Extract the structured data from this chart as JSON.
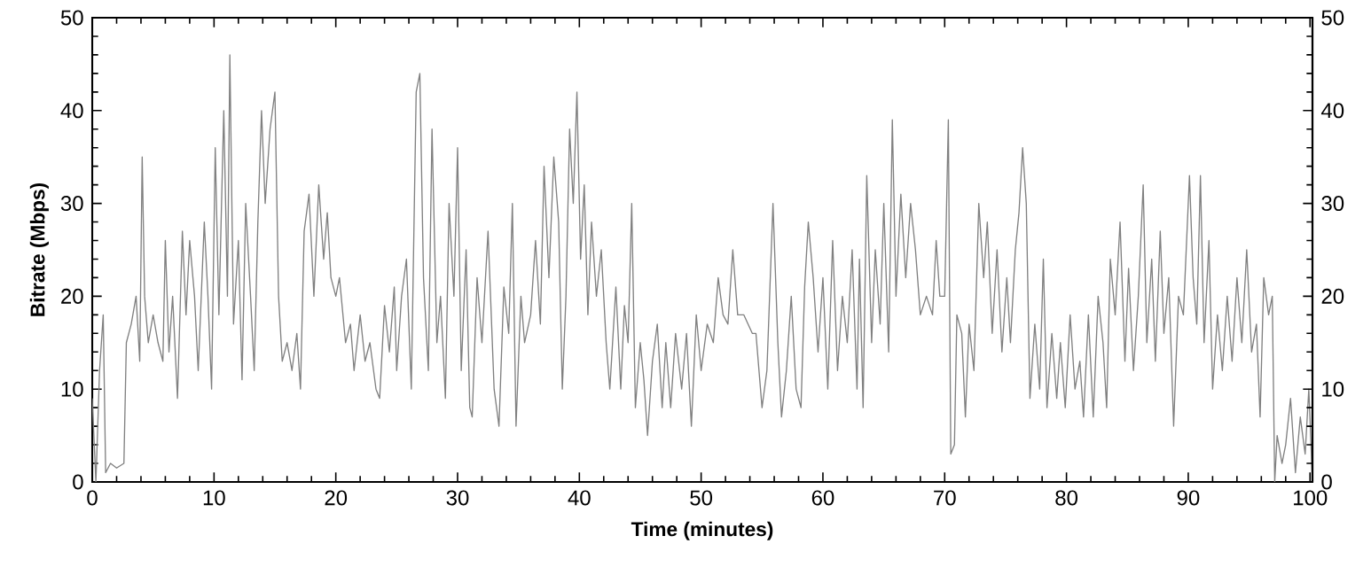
{
  "chart_data": {
    "type": "line",
    "xlabel": "Time (minutes)",
    "ylabel": "Bitrate (Mbps)",
    "xlim": [
      0,
      100.2
    ],
    "ylim": [
      0,
      50
    ],
    "xticks": [
      0,
      10,
      20,
      30,
      40,
      50,
      60,
      70,
      80,
      90,
      100
    ],
    "yticks": [
      0,
      10,
      20,
      30,
      40,
      50
    ],
    "y2lim": [
      0,
      50
    ],
    "y2ticks": [
      0,
      10,
      20,
      30,
      40,
      50
    ],
    "grid": false,
    "marker": "none",
    "line_style": "solid",
    "series": [
      {
        "color": "#808080",
        "x": [
          0,
          0.3,
          0.6,
          0.9,
          1.1,
          1.5,
          2,
          2.6,
          2.8,
          3.2,
          3.6,
          3.9,
          4.1,
          4.3,
          4.6,
          5,
          5.4,
          5.8,
          6,
          6.3,
          6.6,
          7,
          7.2,
          7.4,
          7.7,
          8,
          8.4,
          8.7,
          9.2,
          9.5,
          9.8,
          10.1,
          10.4,
          10.8,
          11.1,
          11.3,
          11.6,
          12,
          12.3,
          12.6,
          13,
          13.3,
          13.6,
          13.9,
          14.2,
          14.6,
          15,
          15.3,
          15.6,
          16,
          16.4,
          16.8,
          17.1,
          17.4,
          17.8,
          18.2,
          18.6,
          19,
          19.3,
          19.6,
          20,
          20.3,
          20.8,
          21.2,
          21.5,
          22,
          22.4,
          22.8,
          23.3,
          23.6,
          24,
          24.4,
          24.8,
          25,
          25.4,
          25.8,
          26.2,
          26.6,
          26.9,
          27.2,
          27.6,
          27.9,
          28.3,
          28.6,
          29,
          29.3,
          29.7,
          30,
          30.3,
          30.7,
          31,
          31.2,
          31.6,
          32,
          32.5,
          33,
          33.4,
          33.8,
          34.2,
          34.5,
          34.8,
          35.2,
          35.5,
          36,
          36.4,
          36.8,
          37.1,
          37.5,
          37.9,
          38.3,
          38.6,
          38.9,
          39.2,
          39.5,
          39.8,
          40.1,
          40.4,
          40.7,
          41,
          41.4,
          41.8,
          42.2,
          42.5,
          43,
          43.4,
          43.7,
          44,
          44.3,
          44.6,
          45,
          45.3,
          45.6,
          46,
          46.4,
          46.8,
          47.1,
          47.5,
          47.9,
          48.4,
          48.8,
          49.2,
          49.6,
          50,
          50.5,
          51,
          51.4,
          51.8,
          52.2,
          52.6,
          53,
          53.5,
          54.2,
          54.5,
          55,
          55.4,
          55.9,
          56.3,
          56.6,
          57,
          57.4,
          57.8,
          58.2,
          58.5,
          58.8,
          59.2,
          59.6,
          60,
          60.4,
          60.8,
          61.2,
          61.6,
          62,
          62.4,
          62.8,
          63,
          63.3,
          63.6,
          64,
          64.3,
          64.7,
          65,
          65.4,
          65.7,
          66,
          66.4,
          66.8,
          67.2,
          67.6,
          68,
          68.5,
          69,
          69.3,
          69.6,
          70,
          70.3,
          70.5,
          70.8,
          71,
          71.4,
          71.7,
          72,
          72.4,
          72.8,
          73.2,
          73.5,
          73.9,
          74.3,
          74.7,
          75.1,
          75.4,
          75.8,
          76.1,
          76.4,
          76.7,
          77,
          77.4,
          77.8,
          78.1,
          78.4,
          78.8,
          79.2,
          79.5,
          79.9,
          80.3,
          80.7,
          81.1,
          81.4,
          81.8,
          82.2,
          82.6,
          83,
          83.3,
          83.6,
          84,
          84.4,
          84.8,
          85.1,
          85.5,
          85.9,
          86.3,
          86.6,
          87,
          87.3,
          87.7,
          88,
          88.4,
          88.8,
          89.2,
          89.6,
          90.1,
          90.4,
          90.7,
          91,
          91.3,
          91.7,
          92,
          92.4,
          92.8,
          93.2,
          93.6,
          94,
          94.4,
          94.8,
          95.2,
          95.6,
          95.9,
          96.2,
          96.6,
          96.9,
          97.1,
          97.3,
          97.7,
          98,
          98.4,
          98.8,
          99.2,
          99.6,
          99.9,
          100.2
        ],
        "values": [
          9,
          0,
          12,
          18,
          1,
          2,
          1.5,
          2,
          15,
          17,
          20,
          13,
          35,
          20,
          15,
          18,
          15,
          13,
          26,
          14,
          20,
          9,
          18,
          27,
          18,
          26,
          20,
          12,
          28,
          20,
          10,
          36,
          18,
          40,
          20,
          46,
          17,
          26,
          11,
          30,
          20,
          12,
          28,
          40,
          30,
          38,
          42,
          20,
          13,
          15,
          12,
          16,
          10,
          27,
          31,
          20,
          32,
          24,
          29,
          22,
          20,
          22,
          15,
          17,
          12,
          18,
          13,
          15,
          10,
          9,
          19,
          14,
          21,
          12,
          20,
          24,
          10,
          42,
          44,
          22,
          12,
          38,
          15,
          20,
          9,
          30,
          20,
          36,
          12,
          25,
          8,
          7,
          22,
          15,
          27,
          10,
          6,
          21,
          16,
          30,
          6,
          20,
          15,
          18,
          26,
          17,
          34,
          22,
          35,
          28,
          10,
          20,
          38,
          30,
          42,
          24,
          32,
          18,
          28,
          20,
          25,
          15,
          10,
          21,
          10,
          19,
          15,
          30,
          8,
          15,
          11,
          5,
          13,
          17,
          8,
          15,
          8,
          16,
          10,
          16,
          6,
          18,
          12,
          17,
          15,
          22,
          18,
          17,
          25,
          18,
          18,
          16,
          16,
          8,
          12,
          30,
          15,
          7,
          12,
          20,
          10,
          8,
          21,
          28,
          22,
          14,
          22,
          10,
          26,
          12,
          20,
          15,
          25,
          10,
          24,
          8,
          33,
          15,
          25,
          17,
          30,
          14,
          39,
          20,
          31,
          22,
          30,
          25,
          18,
          20,
          18,
          26,
          20,
          20,
          39,
          3,
          4,
          18,
          16,
          7,
          17,
          12,
          30,
          22,
          28,
          16,
          25,
          14,
          22,
          15,
          25,
          29,
          36,
          30,
          9,
          17,
          10,
          24,
          8,
          16,
          9,
          15,
          8,
          18,
          10,
          13,
          7,
          18,
          7,
          20,
          15,
          8,
          24,
          18,
          28,
          13,
          23,
          12,
          20,
          32,
          15,
          24,
          13,
          27,
          16,
          22,
          6,
          20,
          18,
          33,
          22,
          17,
          33,
          15,
          26,
          10,
          18,
          12,
          20,
          13,
          22,
          15,
          25,
          14,
          17,
          7,
          22,
          18,
          20,
          0,
          5,
          2,
          4,
          9,
          1,
          7,
          3,
          10,
          0
        ]
      }
    ]
  }
}
